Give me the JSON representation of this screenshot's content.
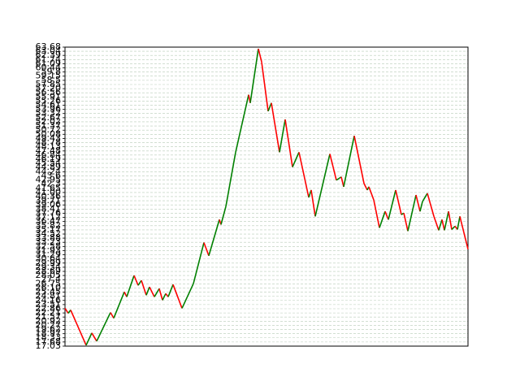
{
  "chart_data": {
    "type": "line",
    "x": [
      0,
      4,
      7,
      26,
      33,
      39,
      56,
      60,
      73,
      76,
      85,
      90,
      94,
      100,
      104,
      110,
      116,
      120,
      124,
      127,
      133,
      144,
      158,
      171,
      177,
      190,
      192,
      198,
      210,
      226,
      228,
      238,
      242,
      250,
      254,
      264,
      271,
      280,
      288,
      300,
      303,
      308,
      326,
      334,
      340,
      343,
      356,
      368,
      372,
      374,
      380,
      387,
      394,
      398,
      407,
      414,
      417,
      422,
      432,
      437,
      440,
      446,
      454,
      460,
      464,
      467,
      472,
      476,
      480,
      483,
      486,
      496
    ],
    "values": [
      22.93,
      22.16,
      22.67,
      17.16,
      19.08,
      17.8,
      22.28,
      21.39,
      25.49,
      24.72,
      28.05,
      26.51,
      27.28,
      24.98,
      26.26,
      24.72,
      26.0,
      24.21,
      25.23,
      24.72,
      26.64,
      22.93,
      26.77,
      33.18,
      31.13,
      36.77,
      36.0,
      38.82,
      47.28,
      56.25,
      54.97,
      63.42,
      61.37,
      53.68,
      54.97,
      47.28,
      52.4,
      44.97,
      47.28,
      40.23,
      41.38,
      37.28,
      47.02,
      42.92,
      43.43,
      41.89,
      49.84,
      42.41,
      41.38,
      41.89,
      39.84,
      35.49,
      38.05,
      36.77,
      41.38,
      37.54,
      37.79,
      34.97,
      40.61,
      38.05,
      39.59,
      40.87,
      37.28,
      35.1,
      36.77,
      35.1,
      38.05,
      35.23,
      35.74,
      35.23,
      37.28,
      32.15
    ],
    "up_color": "#008000",
    "down_color": "#ff0000",
    "xlim": [
      0,
      496
    ],
    "ylim": [
      17.03,
      63.68
    ],
    "yticks": [
      17.03,
      17.68,
      18.33,
      18.97,
      19.62,
      20.27,
      20.92,
      21.57,
      22.21,
      22.86,
      23.51,
      24.16,
      24.81,
      25.45,
      {
        "value": 26.1,
        "label": "26.10"
      },
      26.75,
      27.4,
      28.05,
      28.69,
      29.34,
      29.99,
      30.64,
      31.29,
      31.93,
      32.58,
      33.23,
      33.88,
      34.52,
      35.17,
      35.82,
      36.47,
      37.12,
      37.76,
      38.41,
      39.06,
      39.71,
      40.36,
      {
        "value": 41,
        "label": "41.00"
      },
      41.65,
      42.3,
      42.95,
      43.6,
      44.24,
      44.89,
      45.54,
      46.19,
      46.84,
      47.48,
      48.13,
      48.78,
      49.43,
      50.08,
      50.72,
      51.37,
      52.02,
      52.67,
      53.32,
      53.96,
      54.61,
      55.26,
      55.91,
      56.56,
      {
        "value": 57.2,
        "label": "57.20"
      },
      57.85,
      58.5,
      59.15,
      59.8,
      60.44,
      61.09,
      61.74,
      62.39,
      63.04,
      63.68
    ],
    "grid": true
  }
}
